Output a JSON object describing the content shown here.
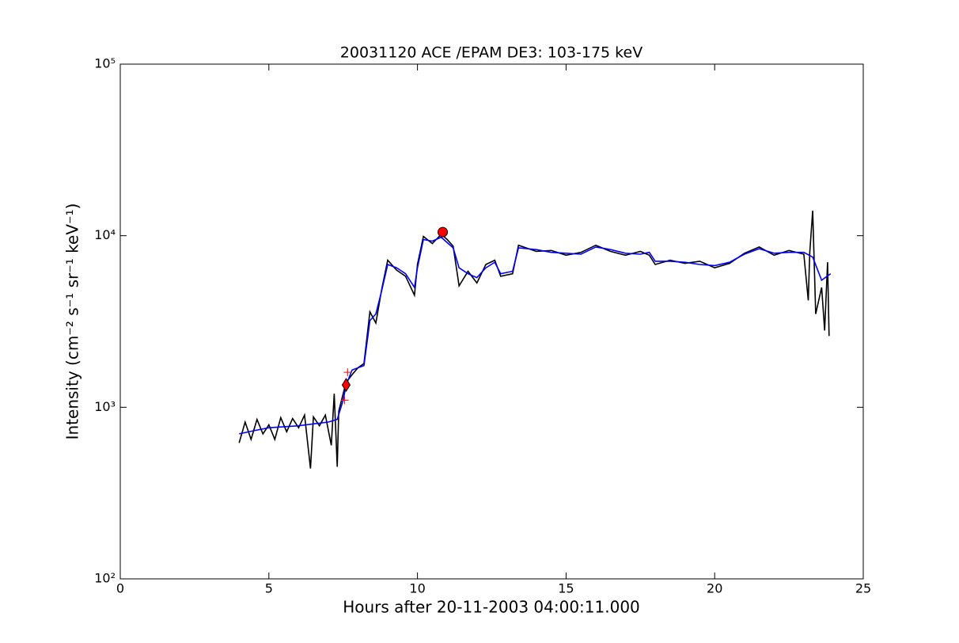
{
  "chart_data": {
    "type": "line",
    "title": "20031120 ACE /EPAM DE3: 103-175 keV",
    "xlabel": "Hours after 20-11-2003 04:00:11.000",
    "ylabel": "Intensity (cm⁻² s⁻¹ sr⁻¹ keV⁻¹)",
    "xlim": [
      0,
      25
    ],
    "xticks": [
      0,
      5,
      10,
      15,
      20,
      25
    ],
    "ylim": [
      100,
      100000
    ],
    "log_y": true,
    "yticks": [
      {
        "value": 100,
        "label": "10²"
      },
      {
        "value": 1000,
        "label": "10³"
      },
      {
        "value": 10000,
        "label": "10⁴"
      },
      {
        "value": 100000,
        "label": "10⁵"
      }
    ],
    "series": [
      {
        "color": "#000000",
        "marker": "none",
        "x": [
          4.0,
          4.2,
          4.4,
          4.6,
          4.8,
          5.0,
          5.2,
          5.4,
          5.6,
          5.8,
          6.0,
          6.2,
          6.4,
          6.5,
          6.7,
          6.9,
          7.1,
          7.2,
          7.3,
          7.35,
          7.5,
          7.6,
          7.8,
          8.0,
          8.2,
          8.4,
          8.6,
          8.8,
          9.0,
          9.3,
          9.6,
          9.9,
          10.0,
          10.2,
          10.5,
          10.8,
          11.0,
          11.2,
          11.4,
          11.7,
          12.0,
          12.3,
          12.6,
          12.8,
          13.2,
          13.4,
          14.0,
          14.5,
          15.0,
          15.5,
          16.0,
          16.5,
          17.0,
          17.5,
          17.8,
          18.0,
          18.5,
          19.0,
          19.5,
          20.0,
          20.5,
          21.0,
          21.5,
          22.0,
          22.5,
          23.0,
          23.15,
          23.2,
          23.3,
          23.35,
          23.4,
          23.6,
          23.7,
          23.8,
          23.85
        ],
        "values": [
          620,
          820,
          650,
          850,
          700,
          790,
          650,
          870,
          720,
          860,
          760,
          900,
          440,
          880,
          780,
          900,
          600,
          1200,
          450,
          950,
          1200,
          1400,
          1550,
          1700,
          1800,
          3600,
          3100,
          4900,
          7200,
          6300,
          5800,
          4500,
          6800,
          9900,
          9000,
          10200,
          9500,
          8700,
          5100,
          6200,
          5300,
          6800,
          7200,
          5800,
          6000,
          8800,
          8100,
          8200,
          7700,
          8000,
          8800,
          8100,
          7700,
          8100,
          7700,
          6800,
          7200,
          6900,
          7100,
          6500,
          6900,
          7900,
          8600,
          7700,
          8200,
          7800,
          4200,
          8000,
          14000,
          7000,
          3500,
          5000,
          2800,
          7000,
          2600
        ]
      },
      {
        "color": "#0000ff",
        "marker": "none",
        "x": [
          4.0,
          4.5,
          5.0,
          5.5,
          6.0,
          6.5,
          7.0,
          7.3,
          7.5,
          7.6,
          7.8,
          8.2,
          8.4,
          8.6,
          8.8,
          9.0,
          9.3,
          9.6,
          9.9,
          10.0,
          10.2,
          10.5,
          10.8,
          11.2,
          11.4,
          11.7,
          12.0,
          12.3,
          12.6,
          12.8,
          13.2,
          13.4,
          14.0,
          14.5,
          15.0,
          15.5,
          16.0,
          16.5,
          17.0,
          17.5,
          17.8,
          18.0,
          18.5,
          19.0,
          19.5,
          20.0,
          20.5,
          21.0,
          21.5,
          22.0,
          22.5,
          23.0,
          23.3,
          23.6,
          23.9
        ],
        "values": [
          700,
          730,
          760,
          770,
          780,
          800,
          820,
          850,
          1100,
          1350,
          1650,
          1750,
          3200,
          3500,
          4800,
          6800,
          6500,
          6000,
          5000,
          6500,
          9500,
          9300,
          9800,
          8500,
          6500,
          6000,
          5700,
          6500,
          7000,
          6000,
          6200,
          8500,
          8300,
          8000,
          7900,
          7800,
          8600,
          8300,
          7900,
          7800,
          8000,
          7100,
          7100,
          7000,
          6800,
          6700,
          7000,
          7800,
          8400,
          7900,
          8000,
          8000,
          7500,
          5500,
          6000
        ]
      },
      {
        "color": "#ff0000",
        "marker": "plus",
        "x": [
          7.65,
          7.55
        ],
        "values": [
          1600,
          1100
        ]
      },
      {
        "color": "#ff0000",
        "marker": "diamond",
        "x": [
          7.6
        ],
        "values": [
          1350
        ]
      },
      {
        "color": "#ff0000",
        "marker": "circle",
        "x": [
          10.85
        ],
        "values": [
          10500
        ]
      }
    ]
  }
}
